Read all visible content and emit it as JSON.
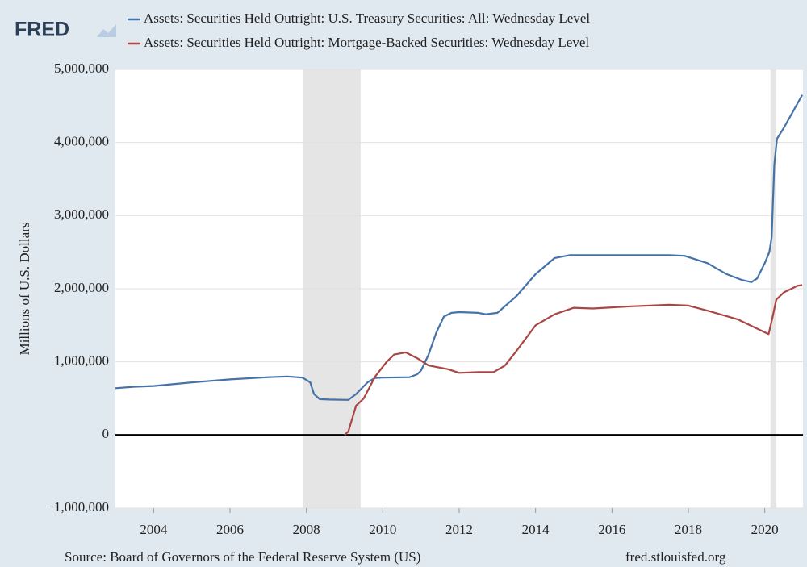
{
  "chart_data": {
    "type": "line",
    "logo": "FRED",
    "ylabel": "Millions of U.S. Dollars",
    "source": "Source: Board of Governors of the Federal Reserve System (US)",
    "site": "fred.stlouisfed.org",
    "xlim": [
      2003,
      2021
    ],
    "xticks": [
      2004,
      2006,
      2008,
      2010,
      2012,
      2014,
      2016,
      2018,
      2020
    ],
    "ylim": [
      -1000000,
      5000000
    ],
    "yticks": [
      {
        "value": -1000000,
        "label": "−1,000,000"
      },
      0,
      {
        "value": 1000000,
        "label": "1,000,000"
      },
      {
        "value": 2000000,
        "label": "2,000,000"
      },
      {
        "value": 3000000,
        "label": "3,000,000"
      },
      {
        "value": 4000000,
        "label": "4,000,000"
      },
      {
        "value": 5000000,
        "label": "5,000,000"
      }
    ],
    "grid": true,
    "recessions": [
      [
        2007.92,
        2009.42
      ],
      [
        2020.15,
        2020.3
      ]
    ],
    "series": [
      {
        "name": "Assets: Securities Held Outright: U.S. Treasury Securities: All: Wednesday Level",
        "color": "#4572a7",
        "x": [
          2003.0,
          2003.5,
          2004,
          2005,
          2006,
          2007,
          2007.5,
          2007.9,
          2008.1,
          2008.2,
          2008.35,
          2008.6,
          2009.1,
          2009.3,
          2009.6,
          2009.8,
          2010,
          2010.7,
          2010.9,
          2011.0,
          2011.2,
          2011.4,
          2011.6,
          2011.8,
          2012,
          2012.5,
          2012.7,
          2013,
          2013.5,
          2014,
          2014.5,
          2014.9,
          2015.5,
          2017.5,
          2017.9,
          2018.5,
          2019,
          2019.4,
          2019.65,
          2019.8,
          2020,
          2020.12,
          2020.18,
          2020.25,
          2020.32,
          2020.5,
          2020.98
        ],
        "values": [
          640000,
          660000,
          670000,
          720000,
          760000,
          790000,
          800000,
          785000,
          720000,
          560000,
          490000,
          485000,
          480000,
          560000,
          720000,
          780000,
          785000,
          790000,
          830000,
          880000,
          1100000,
          1400000,
          1620000,
          1670000,
          1680000,
          1670000,
          1650000,
          1670000,
          1900000,
          2200000,
          2420000,
          2460000,
          2460000,
          2460000,
          2450000,
          2350000,
          2200000,
          2120000,
          2090000,
          2140000,
          2350000,
          2500000,
          2700000,
          3700000,
          4050000,
          4200000,
          4650000
        ]
      },
      {
        "name": "Assets: Securities Held Outright: Mortgage-Backed Securities: Wednesday Level",
        "color": "#aa4643",
        "x": [
          2009.0,
          2009.1,
          2009.3,
          2009.5,
          2009.8,
          2010.1,
          2010.3,
          2010.6,
          2010.9,
          2011.2,
          2011.7,
          2012,
          2012.5,
          2012.9,
          2013.2,
          2013.5,
          2014,
          2014.5,
          2015,
          2015.5,
          2016.5,
          2017.5,
          2018,
          2018.5,
          2019.3,
          2020.1,
          2020.2,
          2020.3,
          2020.5,
          2020.7,
          2020.85,
          2020.98
        ],
        "values": [
          0,
          50000,
          400000,
          500000,
          800000,
          1000000,
          1100000,
          1130000,
          1050000,
          950000,
          900000,
          850000,
          860000,
          860000,
          950000,
          1150000,
          1500000,
          1650000,
          1740000,
          1730000,
          1760000,
          1780000,
          1770000,
          1700000,
          1580000,
          1380000,
          1600000,
          1850000,
          1950000,
          2000000,
          2040000,
          2050000
        ]
      }
    ]
  }
}
